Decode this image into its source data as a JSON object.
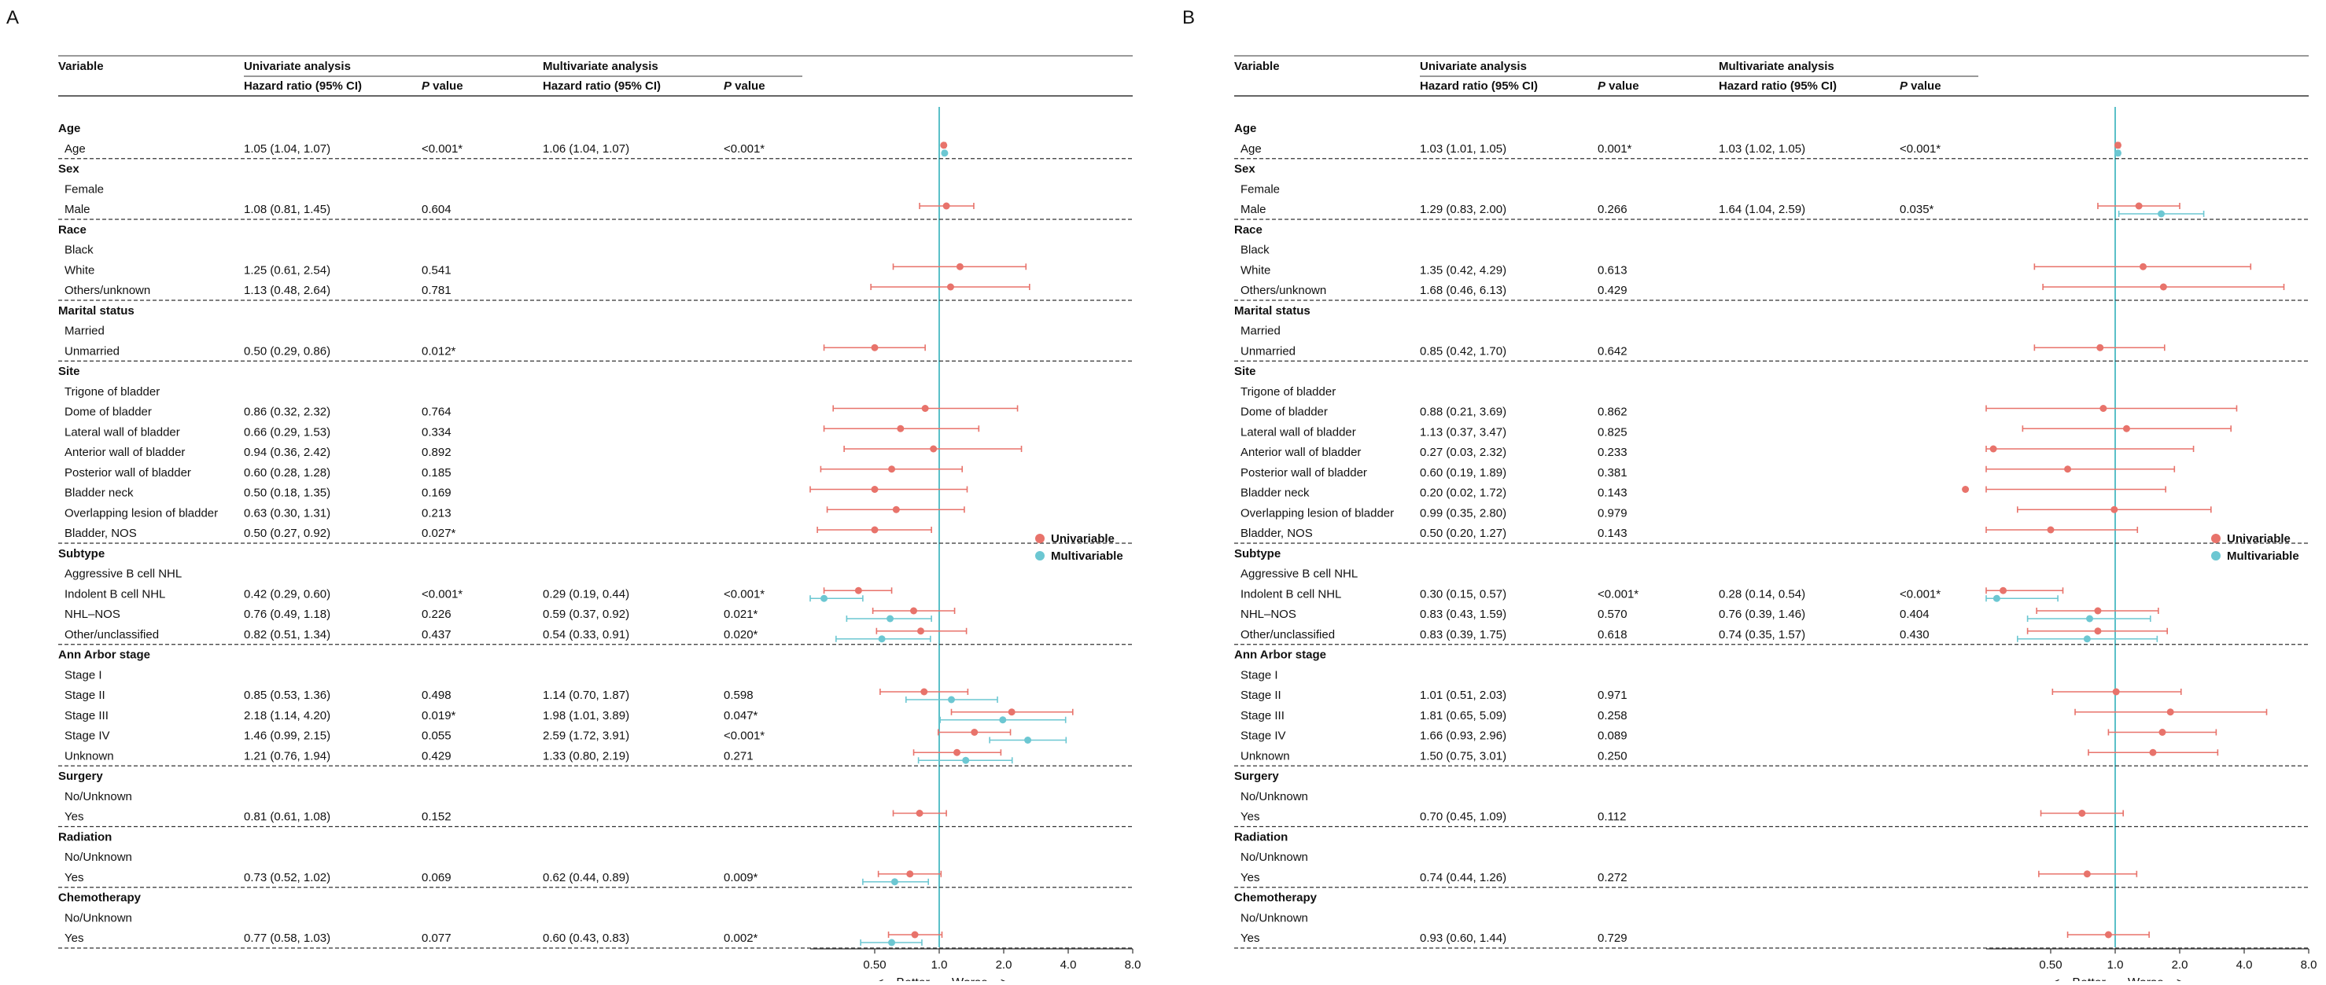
{
  "panel_letters": [
    "A",
    "B"
  ],
  "headers": {
    "variable": "Variable",
    "univariate": "Univariate analysis",
    "multivariate": "Multivariate analysis",
    "hr": "Hazard ratio (95% CI)",
    "p_italic": "P",
    "p_rest": " value"
  },
  "legend": {
    "uni": "Univariable",
    "multi": "Multivariable"
  },
  "axis": {
    "ticks": [
      0.5,
      1.0,
      2.0,
      4.0,
      8.0
    ],
    "tick_labels": [
      "0.50",
      "1.0",
      "2.0",
      "4.0",
      "8.0"
    ],
    "better": "<---Better",
    "worse": "Worse--->"
  },
  "colors": {
    "univariable": "#E8736B",
    "multivariable": "#6CC7D2",
    "reference_line": "#5BC0C8",
    "text": "#111111"
  },
  "chart_data": [
    {
      "type": "forest",
      "panel": "A",
      "xscale": "log2",
      "xlim": [
        0.25,
        8.0
      ],
      "reference": 1.0,
      "rows": [
        {
          "kind": "header",
          "label": "Age"
        },
        {
          "label": "Age",
          "uni": "1.05 (1.04, 1.07)",
          "up": "<0.001*",
          "multi": "1.06 (1.04, 1.07)",
          "mp": "<0.001*",
          "u": [
            1.05,
            1.04,
            1.07
          ],
          "m": [
            1.06,
            1.04,
            1.07
          ],
          "sep": true
        },
        {
          "kind": "header",
          "label": "Sex"
        },
        {
          "label": "Female"
        },
        {
          "label": "Male",
          "uni": "1.08 (0.81, 1.45)",
          "up": "0.604",
          "u": [
            1.08,
            0.81,
            1.45
          ],
          "sep": true
        },
        {
          "kind": "header",
          "label": "Race"
        },
        {
          "label": "Black"
        },
        {
          "label": "White",
          "uni": "1.25 (0.61, 2.54)",
          "up": "0.541",
          "u": [
            1.25,
            0.61,
            2.54
          ]
        },
        {
          "label": "Others/unknown",
          "uni": "1.13 (0.48, 2.64)",
          "up": "0.781",
          "u": [
            1.13,
            0.48,
            2.64
          ],
          "sep": true
        },
        {
          "kind": "header",
          "label": "Marital status"
        },
        {
          "label": "Married"
        },
        {
          "label": "Unmarried",
          "uni": "0.50 (0.29, 0.86)",
          "up": "0.012*",
          "u": [
            0.5,
            0.29,
            0.86
          ],
          "sep": true
        },
        {
          "kind": "header",
          "label": "Site"
        },
        {
          "label": "Trigone of bladder"
        },
        {
          "label": "Dome of bladder",
          "uni": "0.86 (0.32, 2.32)",
          "up": "0.764",
          "u": [
            0.86,
            0.32,
            2.32
          ]
        },
        {
          "label": "Lateral wall of bladder",
          "uni": "0.66 (0.29, 1.53)",
          "up": "0.334",
          "u": [
            0.66,
            0.29,
            1.53
          ]
        },
        {
          "label": "Anterior wall of bladder",
          "uni": "0.94 (0.36, 2.42)",
          "up": "0.892",
          "u": [
            0.94,
            0.36,
            2.42
          ]
        },
        {
          "label": "Posterior wall of bladder",
          "uni": "0.60 (0.28, 1.28)",
          "up": "0.185",
          "u": [
            0.6,
            0.28,
            1.28
          ]
        },
        {
          "label": "Bladder neck",
          "uni": "0.50 (0.18, 1.35)",
          "up": "0.169",
          "u": [
            0.5,
            0.18,
            1.35
          ]
        },
        {
          "label": "Overlapping lesion of bladder",
          "uni": "0.63 (0.30, 1.31)",
          "up": "0.213",
          "u": [
            0.63,
            0.3,
            1.31
          ]
        },
        {
          "label": "Bladder, NOS",
          "uni": "0.50 (0.27, 0.92)",
          "up": "0.027*",
          "u": [
            0.5,
            0.27,
            0.92
          ],
          "sep": true
        },
        {
          "kind": "header",
          "label": "Subtype"
        },
        {
          "label": "Aggressive B cell NHL"
        },
        {
          "label": "Indolent B cell NHL",
          "uni": "0.42 (0.29, 0.60)",
          "up": "<0.001*",
          "multi": "0.29 (0.19, 0.44)",
          "mp": "<0.001*",
          "u": [
            0.42,
            0.29,
            0.6
          ],
          "m": [
            0.29,
            0.19,
            0.44
          ]
        },
        {
          "label": "NHL–NOS",
          "uni": "0.76 (0.49, 1.18)",
          "up": "0.226",
          "multi": "0.59 (0.37, 0.92)",
          "mp": "0.021*",
          "u": [
            0.76,
            0.49,
            1.18
          ],
          "m": [
            0.59,
            0.37,
            0.92
          ]
        },
        {
          "label": "Other/unclassified",
          "uni": "0.82 (0.51, 1.34)",
          "up": "0.437",
          "multi": "0.54 (0.33, 0.91)",
          "mp": "0.020*",
          "u": [
            0.82,
            0.51,
            1.34
          ],
          "m": [
            0.54,
            0.33,
            0.91
          ],
          "sep": true
        },
        {
          "kind": "header",
          "label": "Ann Arbor stage"
        },
        {
          "label": "Stage I"
        },
        {
          "label": "Stage II",
          "uni": "0.85 (0.53, 1.36)",
          "up": "0.498",
          "multi": "1.14 (0.70, 1.87)",
          "mp": "0.598",
          "u": [
            0.85,
            0.53,
            1.36
          ],
          "m": [
            1.14,
            0.7,
            1.87
          ]
        },
        {
          "label": "Stage III",
          "uni": "2.18 (1.14, 4.20)",
          "up": "0.019*",
          "multi": "1.98 (1.01, 3.89)",
          "mp": "0.047*",
          "u": [
            2.18,
            1.14,
            4.2
          ],
          "m": [
            1.98,
            1.01,
            3.89
          ]
        },
        {
          "label": "Stage IV",
          "uni": "1.46 (0.99, 2.15)",
          "up": "0.055",
          "multi": "2.59 (1.72, 3.91)",
          "mp": "<0.001*",
          "u": [
            1.46,
            0.99,
            2.15
          ],
          "m": [
            2.59,
            1.72,
            3.91
          ]
        },
        {
          "label": "Unknown",
          "uni": "1.21 (0.76, 1.94)",
          "up": "0.429",
          "multi": "1.33 (0.80, 2.19)",
          "mp": "0.271",
          "u": [
            1.21,
            0.76,
            1.94
          ],
          "m": [
            1.33,
            0.8,
            2.19
          ],
          "sep": true
        },
        {
          "kind": "header",
          "label": "Surgery"
        },
        {
          "label": "No/Unknown"
        },
        {
          "label": "Yes",
          "uni": "0.81 (0.61, 1.08)",
          "up": "0.152",
          "u": [
            0.81,
            0.61,
            1.08
          ],
          "sep": true
        },
        {
          "kind": "header",
          "label": "Radiation"
        },
        {
          "label": "No/Unknown"
        },
        {
          "label": "Yes",
          "uni": "0.73 (0.52, 1.02)",
          "up": "0.069",
          "multi": "0.62 (0.44, 0.89)",
          "mp": "0.009*",
          "u": [
            0.73,
            0.52,
            1.02
          ],
          "m": [
            0.62,
            0.44,
            0.89
          ],
          "sep": true
        },
        {
          "kind": "header",
          "label": "Chemotherapy"
        },
        {
          "label": "No/Unknown"
        },
        {
          "label": "Yes",
          "uni": "0.77 (0.58, 1.03)",
          "up": "0.077",
          "multi": "0.60 (0.43, 0.83)",
          "mp": "0.002*",
          "u": [
            0.77,
            0.58,
            1.03
          ],
          "m": [
            0.6,
            0.43,
            0.83
          ],
          "sep": true
        }
      ]
    },
    {
      "type": "forest",
      "panel": "B",
      "xscale": "log2",
      "xlim": [
        0.25,
        8.0
      ],
      "reference": 1.0,
      "rows": [
        {
          "kind": "header",
          "label": "Age"
        },
        {
          "label": "Age",
          "uni": "1.03 (1.01, 1.05)",
          "up": "0.001*",
          "multi": "1.03 (1.02, 1.05)",
          "mp": "<0.001*",
          "u": [
            1.03,
            1.01,
            1.05
          ],
          "m": [
            1.03,
            1.02,
            1.05
          ],
          "sep": true
        },
        {
          "kind": "header",
          "label": "Sex"
        },
        {
          "label": "Female"
        },
        {
          "label": "Male",
          "uni": "1.29 (0.83, 2.00)",
          "up": "0.266",
          "multi": "1.64 (1.04, 2.59)",
          "mp": "0.035*",
          "u": [
            1.29,
            0.83,
            2.0
          ],
          "m": [
            1.64,
            1.04,
            2.59
          ],
          "sep": true
        },
        {
          "kind": "header",
          "label": "Race"
        },
        {
          "label": "Black"
        },
        {
          "label": "White",
          "uni": "1.35 (0.42, 4.29)",
          "up": "0.613",
          "u": [
            1.35,
            0.42,
            4.29
          ]
        },
        {
          "label": "Others/unknown",
          "uni": "1.68 (0.46, 6.13)",
          "up": "0.429",
          "u": [
            1.68,
            0.46,
            6.13
          ],
          "sep": true
        },
        {
          "kind": "header",
          "label": "Marital status"
        },
        {
          "label": "Married"
        },
        {
          "label": "Unmarried",
          "uni": "0.85 (0.42, 1.70)",
          "up": "0.642",
          "u": [
            0.85,
            0.42,
            1.7
          ],
          "sep": true
        },
        {
          "kind": "header",
          "label": "Site"
        },
        {
          "label": "Trigone of bladder"
        },
        {
          "label": "Dome of bladder",
          "uni": "0.88 (0.21, 3.69)",
          "up": "0.862",
          "u": [
            0.88,
            0.21,
            3.69
          ]
        },
        {
          "label": "Lateral wall of bladder",
          "uni": "1.13 (0.37, 3.47)",
          "up": "0.825",
          "u": [
            1.13,
            0.37,
            3.47
          ]
        },
        {
          "label": "Anterior wall of bladder",
          "uni": "0.27 (0.03, 2.32)",
          "up": "0.233",
          "u": [
            0.27,
            0.03,
            2.32
          ]
        },
        {
          "label": "Posterior wall of bladder",
          "uni": "0.60 (0.19, 1.89)",
          "up": "0.381",
          "u": [
            0.6,
            0.19,
            1.89
          ]
        },
        {
          "label": "Bladder neck",
          "uni": "0.20 (0.02, 1.72)",
          "up": "0.143",
          "u": [
            0.2,
            0.02,
            1.72
          ]
        },
        {
          "label": "Overlapping lesion of bladder",
          "uni": "0.99 (0.35, 2.80)",
          "up": "0.979",
          "u": [
            0.99,
            0.35,
            2.8
          ]
        },
        {
          "label": "Bladder, NOS",
          "uni": "0.50 (0.20, 1.27)",
          "up": "0.143",
          "u": [
            0.5,
            0.2,
            1.27
          ],
          "sep": true
        },
        {
          "kind": "header",
          "label": "Subtype"
        },
        {
          "label": "Aggressive B cell NHL"
        },
        {
          "label": "Indolent B cell NHL",
          "uni": "0.30 (0.15, 0.57)",
          "up": "<0.001*",
          "multi": "0.28 (0.14, 0.54)",
          "mp": "<0.001*",
          "u": [
            0.3,
            0.15,
            0.57
          ],
          "m": [
            0.28,
            0.14,
            0.54
          ]
        },
        {
          "label": "NHL–NOS",
          "uni": "0.83 (0.43, 1.59)",
          "up": "0.570",
          "multi": "0.76 (0.39, 1.46)",
          "mp": "0.404",
          "u": [
            0.83,
            0.43,
            1.59
          ],
          "m": [
            0.76,
            0.39,
            1.46
          ]
        },
        {
          "label": "Other/unclassified",
          "uni": "0.83 (0.39, 1.75)",
          "up": "0.618",
          "multi": "0.74 (0.35, 1.57)",
          "mp": "0.430",
          "u": [
            0.83,
            0.39,
            1.75
          ],
          "m": [
            0.74,
            0.35,
            1.57
          ],
          "sep": true
        },
        {
          "kind": "header",
          "label": "Ann Arbor stage"
        },
        {
          "label": "Stage I"
        },
        {
          "label": "Stage II",
          "uni": "1.01 (0.51, 2.03)",
          "up": "0.971",
          "u": [
            1.01,
            0.51,
            2.03
          ]
        },
        {
          "label": "Stage III",
          "uni": "1.81 (0.65, 5.09)",
          "up": "0.258",
          "u": [
            1.81,
            0.65,
            5.09
          ]
        },
        {
          "label": "Stage IV",
          "uni": "1.66 (0.93, 2.96)",
          "up": "0.089",
          "u": [
            1.66,
            0.93,
            2.96
          ]
        },
        {
          "label": "Unknown",
          "uni": "1.50 (0.75, 3.01)",
          "up": "0.250",
          "u": [
            1.5,
            0.75,
            3.01
          ],
          "sep": true
        },
        {
          "kind": "header",
          "label": "Surgery"
        },
        {
          "label": "No/Unknown"
        },
        {
          "label": "Yes",
          "uni": "0.70 (0.45, 1.09)",
          "up": "0.112",
          "u": [
            0.7,
            0.45,
            1.09
          ],
          "sep": true
        },
        {
          "kind": "header",
          "label": "Radiation"
        },
        {
          "label": "No/Unknown"
        },
        {
          "label": "Yes",
          "uni": "0.74 (0.44, 1.26)",
          "up": "0.272",
          "u": [
            0.74,
            0.44,
            1.26
          ],
          "sep": true
        },
        {
          "kind": "header",
          "label": "Chemotherapy"
        },
        {
          "label": "No/Unknown"
        },
        {
          "label": "Yes",
          "uni": "0.93 (0.60, 1.44)",
          "up": "0.729",
          "u": [
            0.93,
            0.6,
            1.44
          ],
          "sep": true
        }
      ]
    }
  ]
}
